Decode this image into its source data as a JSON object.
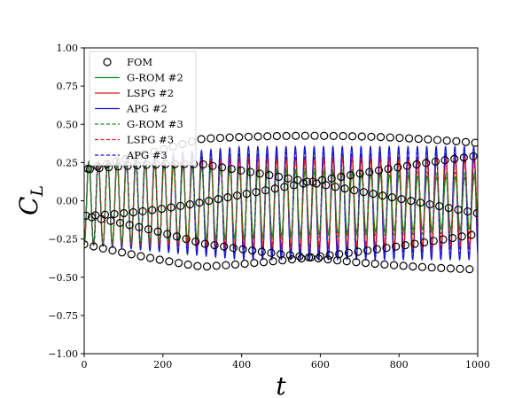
{
  "chart_data": {
    "type": "line",
    "xlabel": "t",
    "ylabel": "C_L",
    "xlim": [
      0,
      1000
    ],
    "ylim": [
      -1.0,
      1.0
    ],
    "xticks": [
      "0",
      "200",
      "400",
      "600",
      "800",
      "1000"
    ],
    "yticks": [
      "−1.00",
      "−0.75",
      "−0.50",
      "−0.25",
      "0.00",
      "0.25",
      "0.50",
      "0.75",
      "1.00"
    ],
    "grid": false,
    "legend_position": "top-left",
    "series": [
      {
        "name": "FOM",
        "style": "markers",
        "color": "#000000",
        "period": 23.9,
        "amp_start": 0.27,
        "amp_end": 0.44,
        "ramp": 300,
        "shift": 0.0
      },
      {
        "name": "G-ROM #2",
        "style": "solid",
        "color": "#1a8a1a",
        "period": 23.9,
        "amp_start": 0.27,
        "amp_end": 0.17,
        "ramp": 900,
        "shift": 0.2
      },
      {
        "name": "LSPG #2",
        "style": "solid",
        "color": "#e01515",
        "period": 23.9,
        "amp_start": 0.27,
        "amp_end": 0.3,
        "ramp": 500,
        "shift": 0.25
      },
      {
        "name": "APG #2",
        "style": "solid",
        "color": "#1414d0",
        "period": 23.9,
        "amp_start": 0.27,
        "amp_end": 0.37,
        "ramp": 400,
        "shift": 0.55
      },
      {
        "name": "G-ROM #3",
        "style": "dashed",
        "color": "#1a8a1a",
        "period": 23.9,
        "amp_start": 0.27,
        "amp_end": 0.2,
        "ramp": 900,
        "shift": 0.22
      },
      {
        "name": "LSPG #3",
        "style": "dashed",
        "color": "#e01515",
        "period": 23.9,
        "amp_start": 0.27,
        "amp_end": 0.28,
        "ramp": 500,
        "shift": 0.27
      },
      {
        "name": "APG #3",
        "style": "dashed",
        "color": "#1414d0",
        "period": 23.9,
        "amp_start": 0.27,
        "amp_end": 0.33,
        "ramp": 400,
        "shift": 0.5
      }
    ]
  }
}
